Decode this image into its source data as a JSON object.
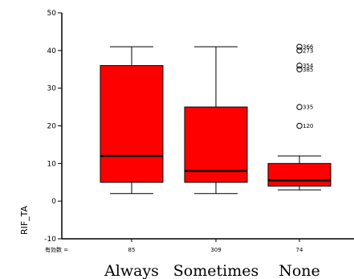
{
  "chart_data": {
    "type": "box",
    "ylabel": "RIF_TA",
    "ylim": [
      -10,
      50
    ],
    "yticks": [
      -10,
      0,
      10,
      20,
      30,
      40,
      50
    ],
    "categories": [
      "Always",
      "Sometimes",
      "None"
    ],
    "count_prefix": "有効数 =",
    "counts": [
      "85",
      "309",
      "74"
    ],
    "boxes": [
      {
        "category": "Always",
        "min": 2,
        "q1": 5,
        "median": 12,
        "q3": 36,
        "max": 41,
        "outliers": []
      },
      {
        "category": "Sometimes",
        "min": 2,
        "q1": 5,
        "median": 8,
        "q3": 25,
        "max": 41,
        "outliers": []
      },
      {
        "category": "None",
        "min": 3,
        "q1": 4,
        "median": 5.5,
        "q3": 10,
        "max": 12,
        "outliers": [
          {
            "value": 41,
            "label": "366"
          },
          {
            "value": 40,
            "label": "273"
          },
          {
            "value": 36,
            "label": "354"
          },
          {
            "value": 35,
            "label": "385"
          },
          {
            "value": 25,
            "label": "335"
          },
          {
            "value": 20,
            "label": "120"
          }
        ]
      }
    ],
    "colors": {
      "box_fill": "#ff0000",
      "box_stroke": "#000000",
      "axis": "#000000",
      "background": "#ffffff"
    }
  }
}
